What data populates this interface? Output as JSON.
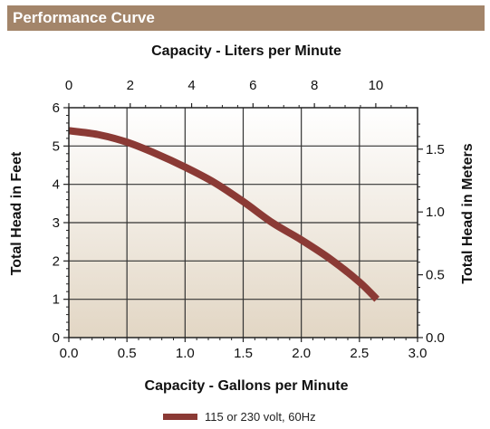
{
  "header": {
    "title": "Performance Curve"
  },
  "legend": {
    "label": "115 or 230 volt, 60Hz"
  },
  "colors": {
    "header_bg": "#a3856a",
    "curve": "#8b3a35",
    "grid": "#333333",
    "plot_top": "#ffffff",
    "plot_bottom": "#e2d6c4"
  },
  "chart_data": {
    "type": "line",
    "title": "",
    "xlabel": "Capacity - Gallons per Minute",
    "ylabel": "Total Head in Feet",
    "x2label": "Capacity - Liters per Minute",
    "y2label": "Total Head in Meters",
    "xlim": [
      0,
      3.0
    ],
    "ylim": [
      0,
      6
    ],
    "x2lim_lpm": [
      0,
      11.36
    ],
    "y2lim_m": [
      0,
      1.83
    ],
    "x_ticks": [
      "0.0",
      "0.5",
      "1.0",
      "1.5",
      "2.0",
      "2.5",
      "3.0"
    ],
    "x_tick_values": [
      0,
      0.5,
      1.0,
      1.5,
      2.0,
      2.5,
      3.0
    ],
    "y_ticks": [
      "0",
      "1",
      "2",
      "3",
      "4",
      "5",
      "6"
    ],
    "y_tick_values": [
      0,
      1,
      2,
      3,
      4,
      5,
      6
    ],
    "x2_ticks": [
      "0",
      "2",
      "4",
      "6",
      "8",
      "10"
    ],
    "x2_tick_values": [
      0,
      2,
      4,
      6,
      8,
      10
    ],
    "y2_ticks": [
      "0.0",
      "0.5",
      "1.0",
      "1.5"
    ],
    "y2_tick_values": [
      0.0,
      0.5,
      1.0,
      1.5
    ],
    "grid": true,
    "legend_position": "bottom-center",
    "series": [
      {
        "name": "115 or 230 volt, 60Hz",
        "x": [
          0.0,
          0.25,
          0.5,
          0.75,
          1.0,
          1.25,
          1.5,
          1.75,
          2.0,
          2.25,
          2.5,
          2.65
        ],
        "y": [
          5.4,
          5.3,
          5.1,
          4.8,
          4.45,
          4.05,
          3.55,
          3.0,
          2.55,
          2.05,
          1.45,
          1.0
        ]
      }
    ]
  }
}
